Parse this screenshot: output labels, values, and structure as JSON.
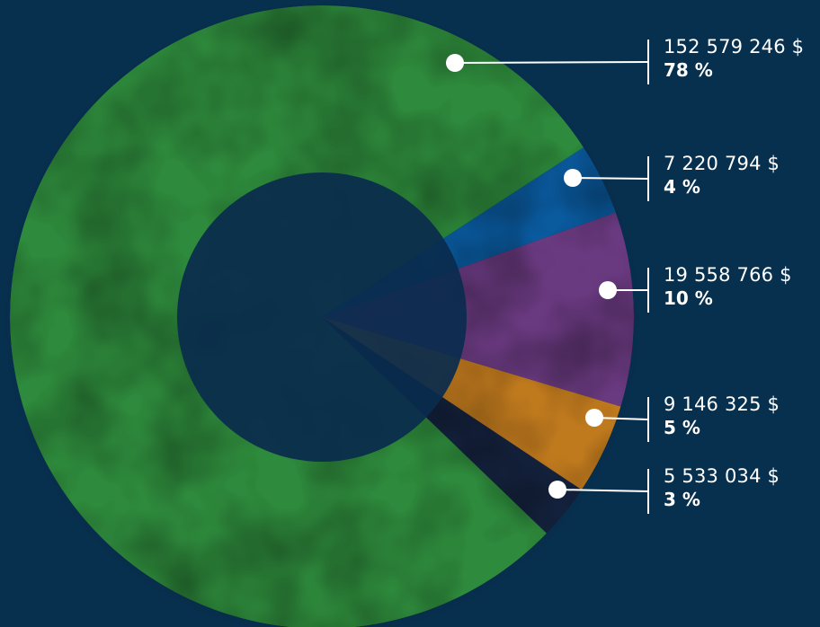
{
  "chart_data": {
    "type": "pie",
    "variant": "donut",
    "title": "",
    "slices": [
      {
        "amount_label": "152 579 246 $",
        "percent_label": "78 %",
        "value": 152579246,
        "percent": 78,
        "color": "#2e8a3c"
      },
      {
        "amount_label": "7 220 794 $",
        "percent_label": "4 %",
        "value": 7220794,
        "percent": 4,
        "color": "#0a5a9e"
      },
      {
        "amount_label": "19 558 766 $",
        "percent_label": "10 %",
        "value": 19558766,
        "percent": 10,
        "color": "#6a3a80"
      },
      {
        "amount_label": "9 146 325 $",
        "percent_label": "5 %",
        "value": 9146325,
        "percent": 5,
        "color": "#c07a1e"
      },
      {
        "amount_label": "5 533 034 $",
        "percent_label": "3 %",
        "value": 5533034,
        "percent": 3,
        "color": "#15233f"
      }
    ],
    "legend": "right",
    "background_color": "#07304f",
    "center_color": "#0a2b4d"
  }
}
